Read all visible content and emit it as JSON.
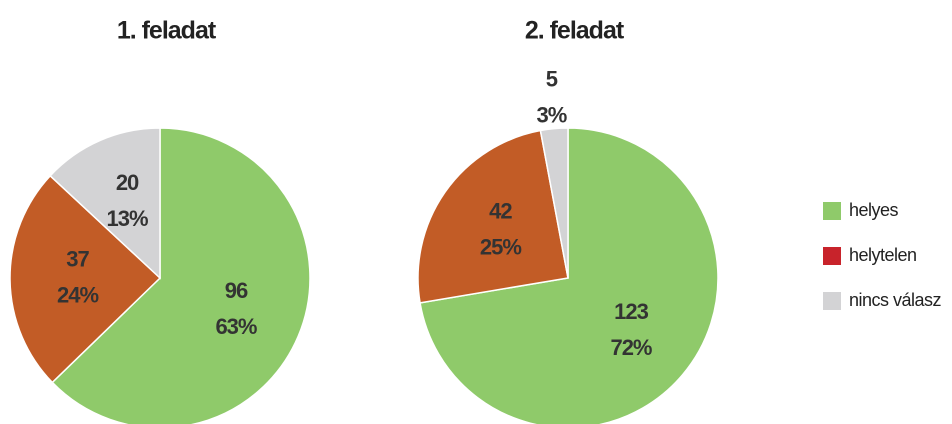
{
  "legend": [
    {
      "name": "helyes",
      "color": "#8fca6a"
    },
    {
      "name": "helytelen",
      "color": "#c8232b"
    },
    {
      "name": "nincs válasz",
      "color": "#d3d3d5"
    }
  ],
  "chart_data": [
    {
      "type": "pie",
      "title": "1. feladat",
      "values": [
        96,
        37,
        20
      ],
      "percent_labels": [
        "63%",
        "24%",
        "13%"
      ],
      "colors": [
        "#8fca6a",
        "#c25c26",
        "#d3d3d5"
      ]
    },
    {
      "type": "pie",
      "title": "2. feladat",
      "values": [
        123,
        42,
        5
      ],
      "percent_labels": [
        "72%",
        "25%",
        "3%"
      ],
      "colors": [
        "#8fca6a",
        "#c25c26",
        "#d3d3d5"
      ]
    }
  ]
}
